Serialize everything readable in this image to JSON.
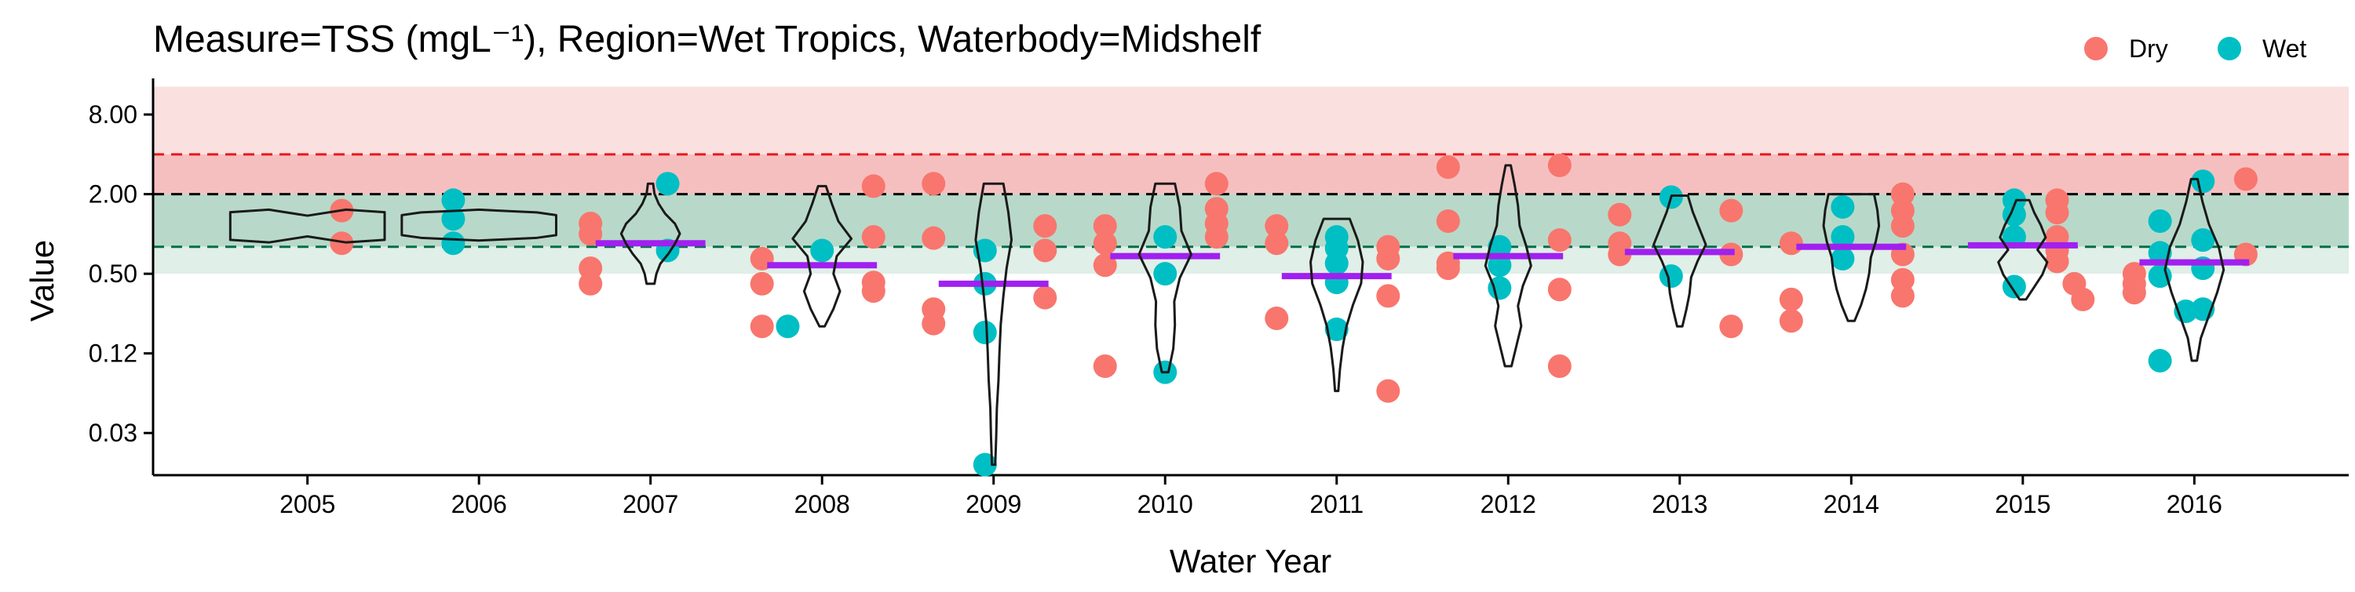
{
  "chart_data": {
    "type": "scatter",
    "title": "Measure=TSS (mgL⁻¹), Region=Wet Tropics, Waterbody=Midshelf",
    "xlabel": "Water Year",
    "ylabel": "Value",
    "y_scale": "log2",
    "ylim": [
      0.015,
      15.0
    ],
    "yticks": [
      {
        "value": 8.0,
        "label": "8.00"
      },
      {
        "value": 2.0,
        "label": "2.00"
      },
      {
        "value": 0.5,
        "label": "0.50"
      },
      {
        "value": 0.125,
        "label": "0.12"
      },
      {
        "value": 0.03125,
        "label": "0.03"
      }
    ],
    "categories": [
      "2005",
      "2006",
      "2007",
      "2008",
      "2009",
      "2010",
      "2011",
      "2012",
      "2013",
      "2014",
      "2015",
      "2016"
    ],
    "legend": {
      "position": "top-right",
      "entries": [
        {
          "label": "Dry",
          "color": "#F8766D"
        },
        {
          "label": "Wet",
          "color": "#00BFC4"
        }
      ]
    },
    "guidelines": [
      {
        "value": 4.0,
        "color": "#E41A1C",
        "style": "dashed"
      },
      {
        "value": 2.0,
        "color": "#000000",
        "style": "dashed"
      },
      {
        "value": 0.8,
        "color": "#006D4C",
        "style": "dashed"
      }
    ],
    "bands": [
      {
        "from": 4.0,
        "to": 13.0,
        "color": "#FBE0E0"
      },
      {
        "from": 2.0,
        "to": 4.0,
        "color": "#F6BFBF"
      },
      {
        "from": 0.8,
        "to": 2.0,
        "color": "#B8D9C9"
      },
      {
        "from": 0.5,
        "to": 0.8,
        "color": "#E0EFE8"
      }
    ],
    "series": [
      {
        "name": "Dry",
        "color": "#F8766D",
        "points": [
          {
            "x": "2005",
            "offset": 0.2,
            "y": 1.5
          },
          {
            "x": "2005",
            "offset": 0.2,
            "y": 0.85
          },
          {
            "x": "2007",
            "offset": -0.35,
            "y": 1.2
          },
          {
            "x": "2007",
            "offset": -0.35,
            "y": 1.0
          },
          {
            "x": "2007",
            "offset": -0.35,
            "y": 0.55
          },
          {
            "x": "2007",
            "offset": -0.35,
            "y": 0.42
          },
          {
            "x": "2008",
            "offset": -0.35,
            "y": 0.65
          },
          {
            "x": "2008",
            "offset": -0.35,
            "y": 0.42
          },
          {
            "x": "2008",
            "offset": -0.35,
            "y": 0.2
          },
          {
            "x": "2008",
            "offset": 0.3,
            "y": 2.3
          },
          {
            "x": "2008",
            "offset": 0.3,
            "y": 0.95
          },
          {
            "x": "2008",
            "offset": 0.3,
            "y": 0.43
          },
          {
            "x": "2008",
            "offset": 0.3,
            "y": 0.37
          },
          {
            "x": "2009",
            "offset": -0.35,
            "y": 2.4
          },
          {
            "x": "2009",
            "offset": -0.35,
            "y": 0.93
          },
          {
            "x": "2009",
            "offset": -0.35,
            "y": 0.27
          },
          {
            "x": "2009",
            "offset": -0.35,
            "y": 0.21
          },
          {
            "x": "2009",
            "offset": 0.3,
            "y": 1.15
          },
          {
            "x": "2009",
            "offset": 0.3,
            "y": 0.75
          },
          {
            "x": "2009",
            "offset": 0.3,
            "y": 0.33
          },
          {
            "x": "2010",
            "offset": -0.35,
            "y": 1.15
          },
          {
            "x": "2010",
            "offset": -0.35,
            "y": 0.85
          },
          {
            "x": "2010",
            "offset": -0.35,
            "y": 0.58
          },
          {
            "x": "2010",
            "offset": -0.35,
            "y": 0.1
          },
          {
            "x": "2010",
            "offset": 0.3,
            "y": 2.4
          },
          {
            "x": "2010",
            "offset": 0.3,
            "y": 1.55
          },
          {
            "x": "2010",
            "offset": 0.3,
            "y": 1.2
          },
          {
            "x": "2010",
            "offset": 0.3,
            "y": 0.95
          },
          {
            "x": "2011",
            "offset": -0.35,
            "y": 1.15
          },
          {
            "x": "2011",
            "offset": -0.35,
            "y": 0.85
          },
          {
            "x": "2011",
            "offset": -0.35,
            "y": 0.23
          },
          {
            "x": "2011",
            "offset": 0.3,
            "y": 0.8
          },
          {
            "x": "2011",
            "offset": 0.3,
            "y": 0.65
          },
          {
            "x": "2011",
            "offset": 0.3,
            "y": 0.34
          },
          {
            "x": "2011",
            "offset": 0.3,
            "y": 0.065
          },
          {
            "x": "2012",
            "offset": -0.35,
            "y": 3.2
          },
          {
            "x": "2012",
            "offset": -0.35,
            "y": 1.25
          },
          {
            "x": "2012",
            "offset": -0.35,
            "y": 0.6
          },
          {
            "x": "2012",
            "offset": -0.35,
            "y": 0.55
          },
          {
            "x": "2012",
            "offset": 0.3,
            "y": 3.3
          },
          {
            "x": "2012",
            "offset": 0.3,
            "y": 0.9
          },
          {
            "x": "2012",
            "offset": 0.3,
            "y": 0.38
          },
          {
            "x": "2012",
            "offset": 0.3,
            "y": 0.1
          },
          {
            "x": "2013",
            "offset": -0.35,
            "y": 1.4
          },
          {
            "x": "2013",
            "offset": -0.35,
            "y": 0.85
          },
          {
            "x": "2013",
            "offset": -0.35,
            "y": 0.7
          },
          {
            "x": "2013",
            "offset": 0.3,
            "y": 1.5
          },
          {
            "x": "2013",
            "offset": 0.3,
            "y": 0.7
          },
          {
            "x": "2013",
            "offset": 0.3,
            "y": 0.2
          },
          {
            "x": "2014",
            "offset": -0.35,
            "y": 0.85
          },
          {
            "x": "2014",
            "offset": -0.35,
            "y": 0.32
          },
          {
            "x": "2014",
            "offset": -0.35,
            "y": 0.22
          },
          {
            "x": "2014",
            "offset": 0.3,
            "y": 2.0
          },
          {
            "x": "2014",
            "offset": 0.3,
            "y": 1.5
          },
          {
            "x": "2014",
            "offset": 0.3,
            "y": 1.15
          },
          {
            "x": "2014",
            "offset": 0.3,
            "y": 0.7
          },
          {
            "x": "2014",
            "offset": 0.3,
            "y": 0.45
          },
          {
            "x": "2014",
            "offset": 0.3,
            "y": 0.34
          },
          {
            "x": "2015",
            "offset": 0.2,
            "y": 1.8
          },
          {
            "x": "2015",
            "offset": 0.2,
            "y": 1.45
          },
          {
            "x": "2015",
            "offset": 0.2,
            "y": 0.95
          },
          {
            "x": "2015",
            "offset": 0.2,
            "y": 0.75
          },
          {
            "x": "2015",
            "offset": 0.2,
            "y": 0.62
          },
          {
            "x": "2015",
            "offset": 0.3,
            "y": 0.42
          },
          {
            "x": "2015",
            "offset": 0.35,
            "y": 0.32
          },
          {
            "x": "2016",
            "offset": -0.35,
            "y": 0.5
          },
          {
            "x": "2016",
            "offset": -0.35,
            "y": 0.42
          },
          {
            "x": "2016",
            "offset": -0.35,
            "y": 0.36
          },
          {
            "x": "2016",
            "offset": 0.3,
            "y": 2.6
          },
          {
            "x": "2016",
            "offset": 0.3,
            "y": 0.7
          }
        ]
      },
      {
        "name": "Wet",
        "color": "#00BFC4",
        "points": [
          {
            "x": "2006",
            "offset": -0.15,
            "y": 1.8
          },
          {
            "x": "2006",
            "offset": -0.15,
            "y": 1.3
          },
          {
            "x": "2006",
            "offset": -0.15,
            "y": 0.85
          },
          {
            "x": "2007",
            "offset": 0.1,
            "y": 2.4
          },
          {
            "x": "2007",
            "offset": 0.1,
            "y": 0.75
          },
          {
            "x": "2008",
            "offset": -0.2,
            "y": 0.2
          },
          {
            "x": "2008",
            "offset": 0.0,
            "y": 0.75
          },
          {
            "x": "2009",
            "offset": -0.05,
            "y": 0.75
          },
          {
            "x": "2009",
            "offset": -0.05,
            "y": 0.42
          },
          {
            "x": "2009",
            "offset": -0.05,
            "y": 0.18
          },
          {
            "x": "2009",
            "offset": -0.05,
            "y": 0.018
          },
          {
            "x": "2010",
            "offset": 0.0,
            "y": 0.95
          },
          {
            "x": "2010",
            "offset": 0.0,
            "y": 0.5
          },
          {
            "x": "2010",
            "offset": 0.0,
            "y": 0.09
          },
          {
            "x": "2011",
            "offset": 0.0,
            "y": 0.95
          },
          {
            "x": "2011",
            "offset": 0.0,
            "y": 0.78
          },
          {
            "x": "2011",
            "offset": 0.0,
            "y": 0.6
          },
          {
            "x": "2011",
            "offset": 0.0,
            "y": 0.43
          },
          {
            "x": "2011",
            "offset": 0.0,
            "y": 0.19
          },
          {
            "x": "2012",
            "offset": -0.05,
            "y": 0.8
          },
          {
            "x": "2012",
            "offset": -0.05,
            "y": 0.58
          },
          {
            "x": "2012",
            "offset": -0.05,
            "y": 0.39
          },
          {
            "x": "2013",
            "offset": -0.05,
            "y": 1.9
          },
          {
            "x": "2013",
            "offset": -0.05,
            "y": 0.48
          },
          {
            "x": "2014",
            "offset": -0.05,
            "y": 1.6
          },
          {
            "x": "2014",
            "offset": -0.05,
            "y": 0.95
          },
          {
            "x": "2014",
            "offset": -0.05,
            "y": 0.65
          },
          {
            "x": "2015",
            "offset": -0.05,
            "y": 1.8
          },
          {
            "x": "2015",
            "offset": -0.05,
            "y": 1.4
          },
          {
            "x": "2015",
            "offset": -0.05,
            "y": 0.95
          },
          {
            "x": "2015",
            "offset": -0.05,
            "y": 0.4
          },
          {
            "x": "2016",
            "offset": -0.2,
            "y": 1.25
          },
          {
            "x": "2016",
            "offset": -0.2,
            "y": 0.72
          },
          {
            "x": "2016",
            "offset": -0.2,
            "y": 0.48
          },
          {
            "x": "2016",
            "offset": -0.2,
            "y": 0.11
          },
          {
            "x": "2016",
            "offset": 0.05,
            "y": 2.5
          },
          {
            "x": "2016",
            "offset": 0.05,
            "y": 0.9
          },
          {
            "x": "2016",
            "offset": 0.05,
            "y": 0.55
          },
          {
            "x": "2016",
            "offset": -0.05,
            "y": 0.26
          },
          {
            "x": "2016",
            "offset": 0.05,
            "y": 0.27
          }
        ]
      }
    ],
    "medians": [
      {
        "x": "2007",
        "value": 0.85,
        "color": "#A020F0"
      },
      {
        "x": "2008",
        "value": 0.58,
        "color": "#A020F0"
      },
      {
        "x": "2009",
        "value": 0.42,
        "color": "#A020F0"
      },
      {
        "x": "2010",
        "value": 0.68,
        "color": "#A020F0"
      },
      {
        "x": "2011",
        "value": 0.48,
        "color": "#A020F0"
      },
      {
        "x": "2012",
        "value": 0.68,
        "color": "#A020F0"
      },
      {
        "x": "2013",
        "value": 0.73,
        "color": "#A020F0"
      },
      {
        "x": "2014",
        "value": 0.8,
        "color": "#A020F0"
      },
      {
        "x": "2015",
        "value": 0.82,
        "color": "#A020F0"
      },
      {
        "x": "2016",
        "value": 0.61,
        "color": "#A020F0"
      }
    ],
    "violins": [
      {
        "x": "2005",
        "orientation": "horizontal",
        "y": [
          0.85,
          1.55
        ],
        "profile": [
          0.8,
          0.95,
          0.6,
          0.95,
          0.8
        ]
      },
      {
        "x": "2006",
        "orientation": "horizontal",
        "y": [
          0.85,
          1.6
        ],
        "profile": [
          0.55,
          0.7,
          0.75,
          0.8,
          0.85,
          0.8,
          0.75,
          0.7,
          0.55
        ]
      },
      {
        "x": "2007",
        "y": [
          0.42,
          2.4
        ],
        "profile": [
          0.12,
          0.18,
          0.3,
          0.55,
          0.75,
          0.9,
          0.75,
          0.45,
          0.25,
          0.12,
          0.08
        ]
      },
      {
        "x": "2008",
        "y": [
          0.2,
          2.3
        ],
        "profile": [
          0.08,
          0.35,
          0.55,
          0.35,
          0.45,
          0.9,
          0.5,
          0.3,
          0.12
        ]
      },
      {
        "x": "2009",
        "y": [
          0.018,
          2.4
        ],
        "profile": [
          0.05,
          0.08,
          0.1,
          0.15,
          0.18,
          0.22,
          0.3,
          0.4,
          0.55,
          0.45,
          0.3
        ]
      },
      {
        "x": "2010",
        "y": [
          0.09,
          2.4
        ],
        "profile": [
          0.1,
          0.25,
          0.3,
          0.28,
          0.45,
          0.8,
          0.5,
          0.45,
          0.3
        ]
      },
      {
        "x": "2011",
        "y": [
          0.065,
          1.3
        ],
        "profile": [
          0.05,
          0.1,
          0.18,
          0.3,
          0.5,
          0.75,
          0.8,
          0.65,
          0.4
        ]
      },
      {
        "x": "2012",
        "y": [
          0.1,
          3.3
        ],
        "profile": [
          0.1,
          0.25,
          0.4,
          0.3,
          0.45,
          0.7,
          0.55,
          0.35,
          0.3,
          0.2,
          0.08
        ]
      },
      {
        "x": "2013",
        "y": [
          0.2,
          1.95
        ],
        "profile": [
          0.08,
          0.2,
          0.3,
          0.35,
          0.55,
          0.8,
          0.6,
          0.4,
          0.25
        ]
      },
      {
        "x": "2014",
        "y": [
          0.22,
          2.0
        ],
        "profile": [
          0.1,
          0.3,
          0.45,
          0.55,
          0.6,
          0.75,
          0.85,
          0.8,
          0.7
        ]
      },
      {
        "x": "2015",
        "y": [
          0.32,
          1.8
        ],
        "profile": [
          0.1,
          0.35,
          0.6,
          0.75,
          0.45,
          0.7,
          0.55,
          0.35,
          0.2
        ]
      },
      {
        "x": "2016",
        "y": [
          0.11,
          2.6
        ],
        "profile": [
          0.08,
          0.2,
          0.45,
          0.7,
          0.9,
          0.75,
          0.45,
          0.25,
          0.1
        ]
      }
    ]
  }
}
